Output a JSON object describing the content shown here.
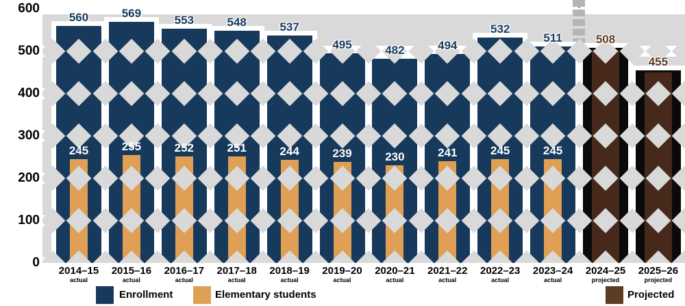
{
  "colors": {
    "plot_background": "#d9d9d9",
    "gridline": "#ffffff",
    "actual_total_bar": "#17395c",
    "actual_subset_bar": "#dfa055",
    "projected_total_bar": "#0a0a0a",
    "projected_subset_fill": "#46291b",
    "projected_label_text": "#5d3c26",
    "actual_total_label_text": "#17395c",
    "subset_label_text": "#ffffff",
    "divider_line": "#b5b5b5",
    "axis_text": "#000000"
  },
  "chart_data": {
    "type": "bar",
    "title": "",
    "xlabel": "",
    "ylabel": "",
    "ylim": [
      0,
      600
    ],
    "yticks": [
      {
        "value": 600,
        "label": "600"
      },
      {
        "value": 500,
        "label": "500"
      },
      {
        "value": 400,
        "label": "400"
      },
      {
        "value": 300,
        "label": "300"
      },
      {
        "value": 200,
        "label": "200"
      },
      {
        "value": 100,
        "label": "100"
      },
      {
        "value": 0,
        "label": "0"
      }
    ],
    "grid": "on",
    "categories": [
      "2014–15",
      "2015–16",
      "2016–17",
      "2017–18",
      "2018–19",
      "2019–20",
      "2020–21",
      "2021–22",
      "2022–23",
      "2023–24",
      "2024–25",
      "2025–26"
    ],
    "category_sublabels": [
      "actual",
      "actual",
      "actual",
      "actual",
      "actual",
      "actual",
      "actual",
      "actual",
      "actual",
      "actual",
      "projected",
      "projected"
    ],
    "projected_from_index": 10,
    "series": [
      {
        "name": "Enrollment",
        "values": [
          560,
          569,
          553,
          548,
          537,
          495,
          482,
          494,
          532,
          511,
          508,
          455
        ],
        "labels": [
          "560",
          "569",
          "553",
          "548",
          "537",
          "495",
          "482",
          "494",
          "532",
          "511",
          "508",
          "455"
        ]
      },
      {
        "name": "Elementary students",
        "values": [
          245,
          255,
          252,
          251,
          244,
          239,
          230,
          241,
          245,
          245,
          null,
          null
        ],
        "labels": [
          "245",
          "255",
          "252",
          "251",
          "244",
          "239",
          "230",
          "241",
          "245",
          "245",
          "",
          ""
        ]
      }
    ],
    "legend_position": "bottom",
    "legend": [
      {
        "label": "Enrollment",
        "color": "#17395c"
      },
      {
        "label": "Elementary students",
        "color": "#dfa055"
      },
      {
        "label": "Projected",
        "color": "#5d3c26"
      }
    ],
    "divider_between_categories": [
      "2023–24",
      "2024–25"
    ]
  }
}
